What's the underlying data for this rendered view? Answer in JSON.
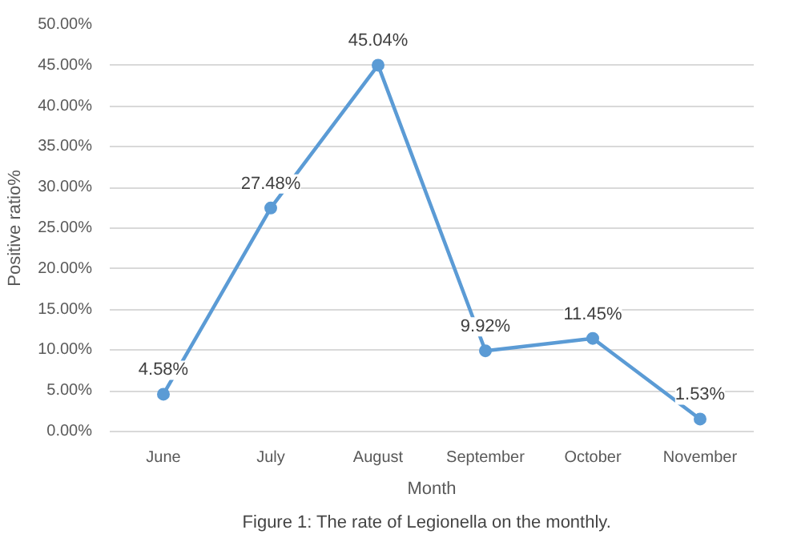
{
  "chart_data": {
    "type": "line",
    "xlabel": "Month",
    "ylabel": "Positive ratio%",
    "categories": [
      "June",
      "July",
      "August",
      "September",
      "October",
      "November"
    ],
    "values": [
      4.58,
      27.48,
      45.04,
      9.92,
      11.45,
      1.53
    ],
    "value_labels": [
      "4.58%",
      "27.48%",
      "45.04%",
      "9.92%",
      "11.45%",
      "1.53%"
    ],
    "color": "#5b9bd5",
    "marker": "circle",
    "line_style": "solid",
    "grid": "y",
    "ylim": [
      0,
      50
    ],
    "yticks": [
      {
        "value": 0,
        "label": "0.00%"
      },
      {
        "value": 5,
        "label": "5.00%"
      },
      {
        "value": 10,
        "label": "10.00%"
      },
      {
        "value": 15,
        "label": "15.00%"
      },
      {
        "value": 20,
        "label": "20.00%"
      },
      {
        "value": 25,
        "label": "25.00%"
      },
      {
        "value": 30,
        "label": "30.00%"
      },
      {
        "value": 35,
        "label": "35.00%"
      },
      {
        "value": 40,
        "label": "40.00%"
      },
      {
        "value": 45,
        "label": "45.00%"
      },
      {
        "value": 50,
        "label": "50.00%"
      }
    ],
    "annotations": [
      "Figure 1:  The rate of  Legionella on the monthly."
    ]
  }
}
